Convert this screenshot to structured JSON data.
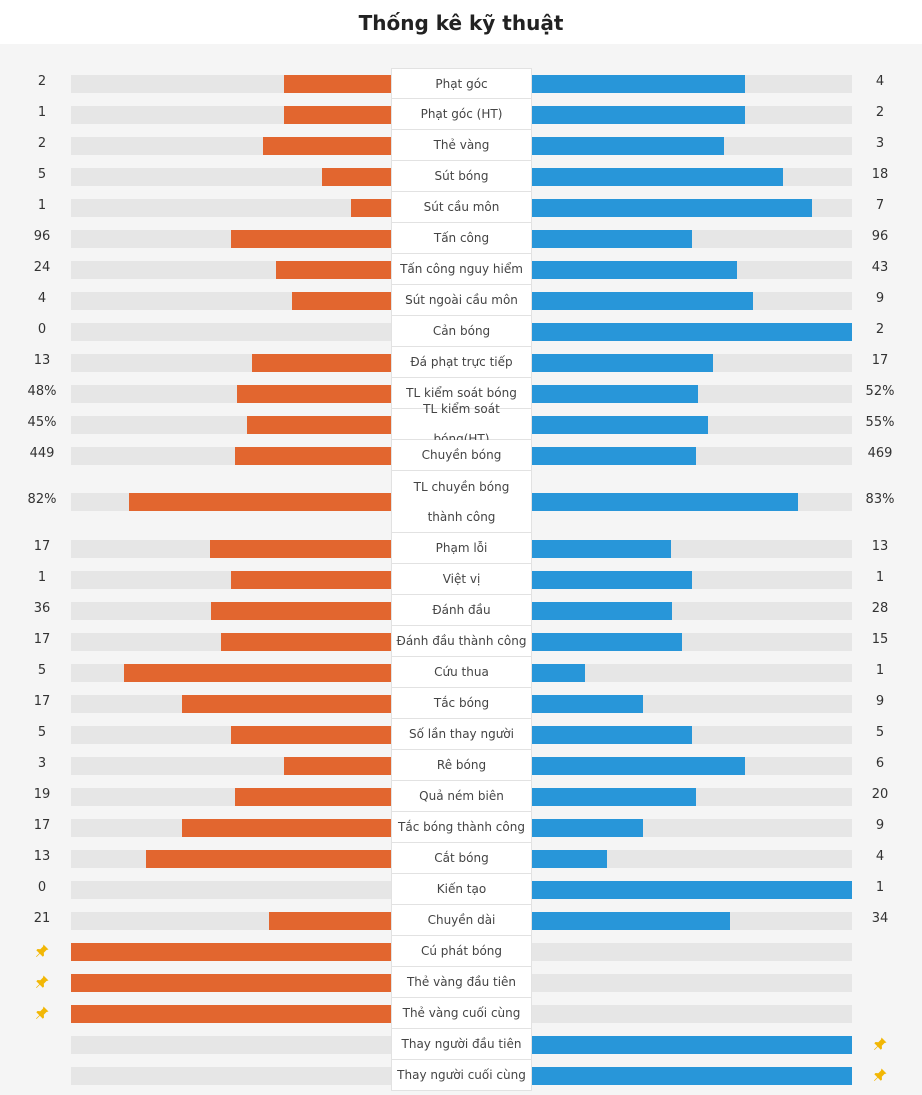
{
  "title": "Thống kê kỹ thuật",
  "colors": {
    "home": "#e2662f",
    "away": "#2896d9",
    "track": "#e6e6e6",
    "pin": "#f2b705"
  },
  "stats": [
    {
      "label": "Phạt góc",
      "home": "2",
      "away": "4",
      "home_pct": 0.333,
      "away_pct": 0.667
    },
    {
      "label": "Phạt góc (HT)",
      "home": "1",
      "away": "2",
      "home_pct": 0.333,
      "away_pct": 0.667
    },
    {
      "label": "Thẻ vàng",
      "home": "2",
      "away": "3",
      "home_pct": 0.4,
      "away_pct": 0.6
    },
    {
      "label": "Sút bóng",
      "home": "5",
      "away": "18",
      "home_pct": 0.217,
      "away_pct": 0.783
    },
    {
      "label": "Sút cầu môn",
      "home": "1",
      "away": "7",
      "home_pct": 0.125,
      "away_pct": 0.875
    },
    {
      "label": "Tấn công",
      "home": "96",
      "away": "96",
      "home_pct": 0.5,
      "away_pct": 0.5
    },
    {
      "label": "Tấn công nguy hiểm",
      "home": "24",
      "away": "43",
      "home_pct": 0.358,
      "away_pct": 0.642
    },
    {
      "label": "Sút ngoài cầu môn",
      "home": "4",
      "away": "9",
      "home_pct": 0.308,
      "away_pct": 0.692
    },
    {
      "label": "Cản bóng",
      "home": "0",
      "away": "2",
      "home_pct": 0,
      "away_pct": 1
    },
    {
      "label": "Đá phạt trực tiếp",
      "home": "13",
      "away": "17",
      "home_pct": 0.433,
      "away_pct": 0.567
    },
    {
      "label": "TL kiểm soát bóng",
      "home": "48%",
      "away": "52%",
      "home_pct": 0.48,
      "away_pct": 0.52
    },
    {
      "label": "TL kiểm soát bóng(HT)",
      "home": "45%",
      "away": "55%",
      "home_pct": 0.45,
      "away_pct": 0.55
    },
    {
      "label": "Chuyền bóng",
      "home": "449",
      "away": "469",
      "home_pct": 0.489,
      "away_pct": 0.511
    },
    {
      "label": "TL chuyền bóng thành công",
      "home": "82%",
      "away": "83%",
      "home_pct": 0.82,
      "away_pct": 0.83
    },
    {
      "label": "Phạm lỗi",
      "home": "17",
      "away": "13",
      "home_pct": 0.567,
      "away_pct": 0.433
    },
    {
      "label": "Việt vị",
      "home": "1",
      "away": "1",
      "home_pct": 0.5,
      "away_pct": 0.5
    },
    {
      "label": "Đánh đầu",
      "home": "36",
      "away": "28",
      "home_pct": 0.5625,
      "away_pct": 0.4375
    },
    {
      "label": "Đánh đầu thành công",
      "home": "17",
      "away": "15",
      "home_pct": 0.531,
      "away_pct": 0.469
    },
    {
      "label": "Cứu thua",
      "home": "5",
      "away": "1",
      "home_pct": 0.833,
      "away_pct": 0.167
    },
    {
      "label": "Tắc bóng",
      "home": "17",
      "away": "9",
      "home_pct": 0.654,
      "away_pct": 0.346
    },
    {
      "label": "Số lần thay người",
      "home": "5",
      "away": "5",
      "home_pct": 0.5,
      "away_pct": 0.5
    },
    {
      "label": "Rê bóng",
      "home": "3",
      "away": "6",
      "home_pct": 0.333,
      "away_pct": 0.667
    },
    {
      "label": "Quả ném biên",
      "home": "19",
      "away": "20",
      "home_pct": 0.487,
      "away_pct": 0.513
    },
    {
      "label": "Tắc bóng thành công",
      "home": "17",
      "away": "9",
      "home_pct": 0.654,
      "away_pct": 0.346
    },
    {
      "label": "Cắt bóng",
      "home": "13",
      "away": "4",
      "home_pct": 0.765,
      "away_pct": 0.235
    },
    {
      "label": "Kiến tạo",
      "home": "0",
      "away": "1",
      "home_pct": 0,
      "away_pct": 1
    },
    {
      "label": "Chuyền dài",
      "home": "21",
      "away": "34",
      "home_pct": 0.382,
      "away_pct": 0.618
    },
    {
      "label": "Cú phát bóng",
      "home": "",
      "away": "",
      "home_pct": 1,
      "away_pct": 0,
      "pin": "home"
    },
    {
      "label": "Thẻ vàng đầu tiên",
      "home": "",
      "away": "",
      "home_pct": 1,
      "away_pct": 0,
      "pin": "home"
    },
    {
      "label": "Thẻ vàng cuối cùng",
      "home": "",
      "away": "",
      "home_pct": 1,
      "away_pct": 0,
      "pin": "home"
    },
    {
      "label": "Thay người đầu tiên",
      "home": "",
      "away": "",
      "home_pct": 0,
      "away_pct": 1,
      "pin": "away"
    },
    {
      "label": "Thay người cuối cùng",
      "home": "",
      "away": "",
      "home_pct": 0,
      "away_pct": 1,
      "pin": "away"
    }
  ]
}
